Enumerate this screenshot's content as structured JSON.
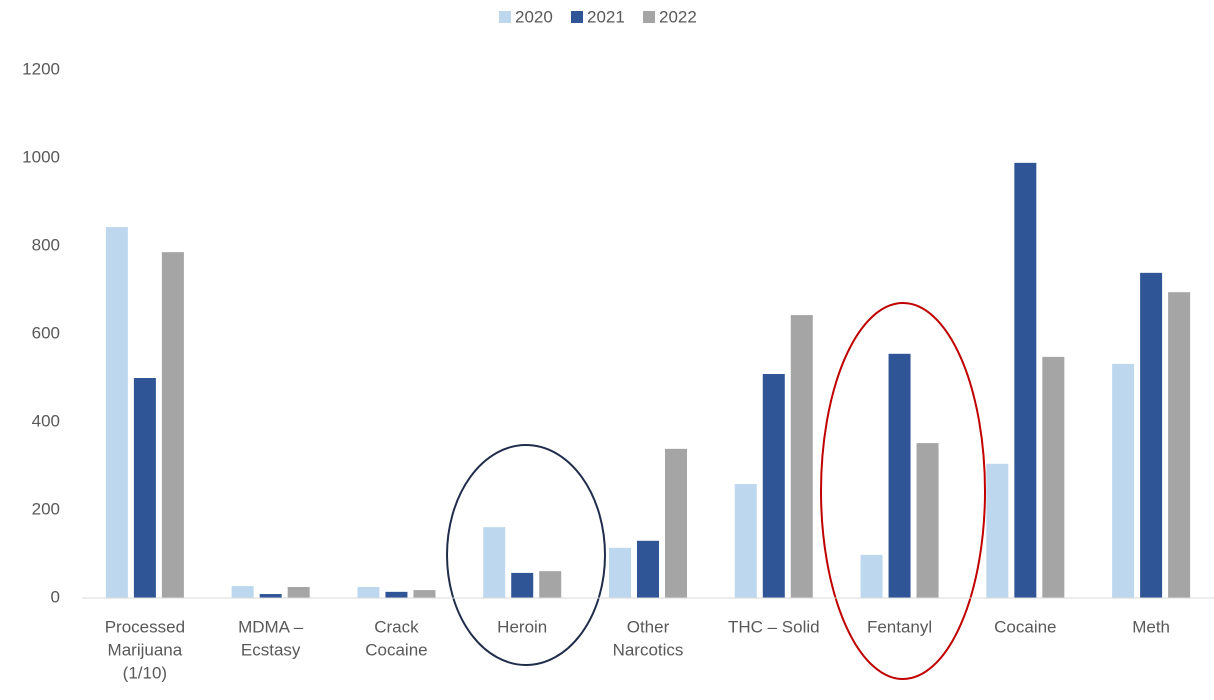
{
  "chart_data": {
    "type": "bar",
    "categories": [
      [
        "Processed",
        "Marijuana",
        "(1/10)"
      ],
      [
        "MDMA –",
        "Ecstasy"
      ],
      [
        "Crack",
        "Cocaine"
      ],
      [
        "Heroin"
      ],
      [
        "Other",
        "Narcotics"
      ],
      [
        "THC – Solid"
      ],
      [
        "Fentanyl"
      ],
      [
        "Cocaine"
      ],
      [
        "Meth"
      ]
    ],
    "series": [
      {
        "name": "2020",
        "color": "#bdd7ee",
        "values": [
          843,
          27,
          25,
          161,
          114,
          259,
          98,
          305,
          532
        ]
      },
      {
        "name": "2021",
        "color": "#2f5597",
        "values": [
          500,
          9,
          14,
          57,
          130,
          509,
          555,
          989,
          739
        ]
      },
      {
        "name": "2022",
        "color": "#a5a5a5",
        "values": [
          786,
          25,
          18,
          61,
          339,
          643,
          352,
          548,
          695
        ]
      }
    ],
    "ylim": [
      0,
      1200
    ],
    "yticks": [
      0,
      200,
      400,
      600,
      800,
      1000,
      1200
    ],
    "grid": false,
    "legend": "top"
  }
}
